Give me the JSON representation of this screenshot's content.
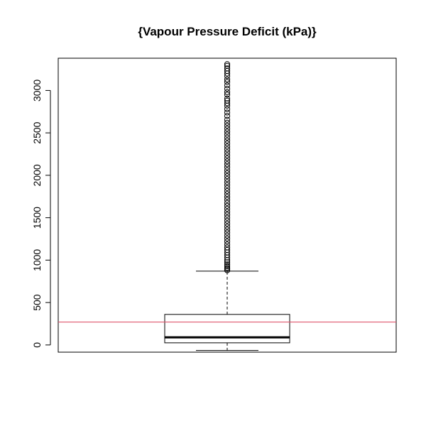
{
  "chart_data": {
    "type": "box",
    "title": "{Vapour Pressure Deficit (kPa)}",
    "xlabel": "",
    "ylabel": "",
    "ylim": [
      -85,
      3380
    ],
    "y_ticks": [
      0,
      500,
      1000,
      1500,
      2000,
      2500,
      3000
    ],
    "y_tick_labels": [
      "0",
      "500",
      "1000",
      "1500",
      "2000",
      "2500",
      "3000"
    ],
    "grid": false,
    "legend": "none",
    "box": {
      "lower_whisker": -65,
      "q1": 25,
      "median": 90,
      "q3": 360,
      "upper_whisker": 870,
      "outliers_range": [
        875,
        3310
      ],
      "outliers_sample": [
        880,
        895,
        910,
        930,
        950,
        975,
        1000,
        1030,
        1060,
        1090,
        1120,
        1150,
        1185,
        1220,
        1255,
        1290,
        1325,
        1360,
        1395,
        1430,
        1465,
        1500,
        1535,
        1570,
        1605,
        1640,
        1675,
        1710,
        1745,
        1780,
        1815,
        1850,
        1885,
        1920,
        1955,
        1990,
        2025,
        2060,
        2095,
        2130,
        2165,
        2200,
        2235,
        2270,
        2305,
        2340,
        2375,
        2410,
        2445,
        2480,
        2515,
        2550,
        2585,
        2620,
        2655,
        2700,
        2740,
        2780,
        2820,
        2850,
        2880,
        2905,
        2950,
        2980,
        3020,
        3060,
        3100,
        3130,
        3170,
        3200,
        3230,
        3260,
        3290,
        3310
      ]
    },
    "reference_line": {
      "y": 270,
      "color": "#DF536B"
    },
    "colors": {
      "box": "#000000",
      "reference_line": "#DF536B",
      "background": "#ffffff"
    }
  }
}
